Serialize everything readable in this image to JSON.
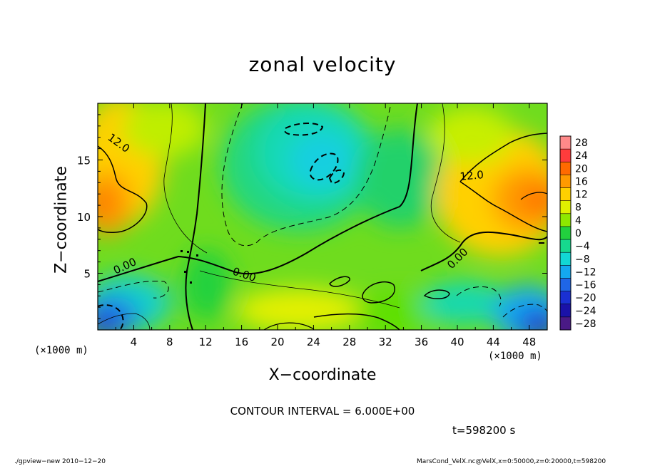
{
  "chart_data": {
    "type": "heatmap",
    "title": "zonal velocity",
    "xlabel": "X−coordinate",
    "ylabel": "Z−coordinate",
    "x_unit": "(×1000 m)",
    "z_unit": "(×1000 m)",
    "xlim": [
      0,
      50
    ],
    "ylim": [
      0,
      20
    ],
    "x_ticks": [
      "4",
      "8",
      "12",
      "16",
      "20",
      "24",
      "28",
      "32",
      "36",
      "40",
      "44",
      "48"
    ],
    "y_ticks": [
      "5",
      "10",
      "15"
    ],
    "colorbar": {
      "labels": [
        "28",
        "24",
        "20",
        "16",
        "12",
        "8",
        "4",
        "0",
        "−4",
        "−8",
        "−12",
        "−16",
        "−20",
        "−24",
        "−28"
      ],
      "colors": [
        "#ff8a8a",
        "#ff3c3c",
        "#ff6a00",
        "#ff9a00",
        "#ffd000",
        "#dff000",
        "#8ee800",
        "#22d13e",
        "#16d98e",
        "#12d7d4",
        "#14a8f0",
        "#1f66e6",
        "#1a30d2",
        "#1a12a8",
        "#4a1a86"
      ]
    },
    "contour_labels": [
      "12.0",
      "0.00",
      "0.00",
      "12.0",
      "0.00"
    ],
    "contour_interval": "CONTOUR INTERVAL = 6.000E+00",
    "time": "t=598200 s"
  },
  "footer": {
    "left": "./gpview−new  2010−12−20",
    "right": "MarsCond_VelX.nc@VelX,x=0:50000,z=0:20000,t=598200"
  }
}
